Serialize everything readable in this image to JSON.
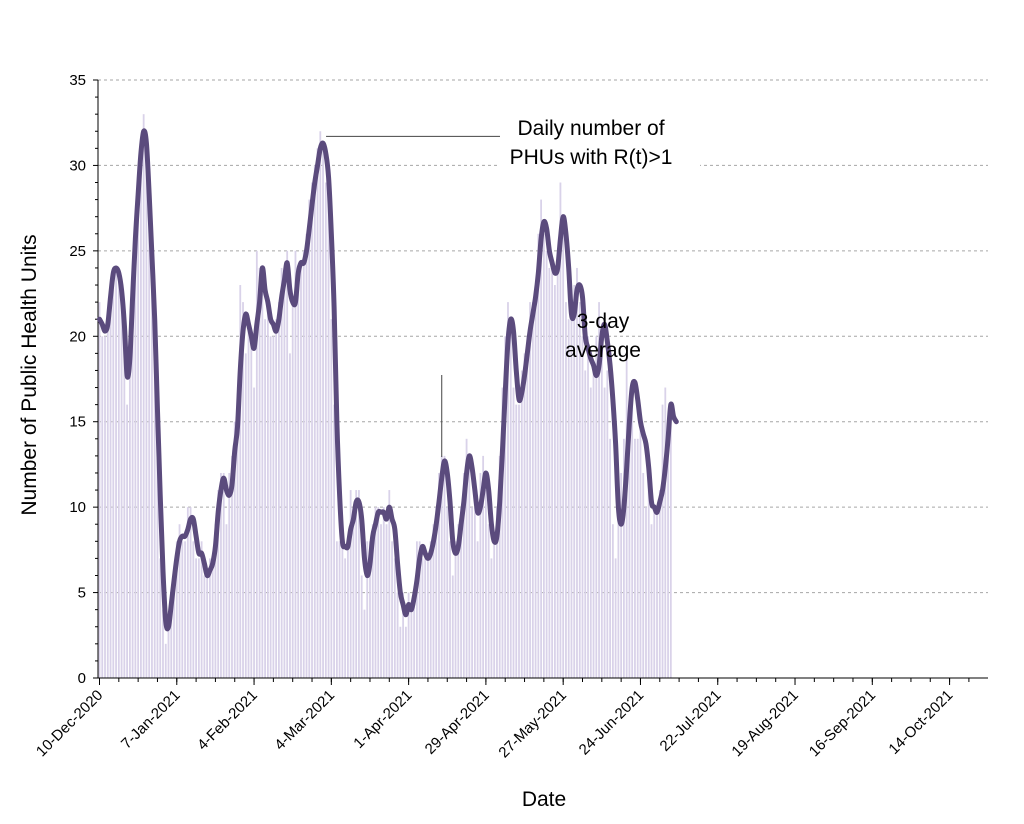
{
  "chart_data": {
    "type": "bar",
    "title": "",
    "xlabel": "Date",
    "ylabel": "Number of Public Health Units",
    "ylim": [
      0,
      35
    ],
    "y_ticks": [
      0,
      5,
      10,
      15,
      20,
      25,
      30,
      35
    ],
    "grid": "horizontal dashed",
    "x_start": "2020-12-10",
    "x_end": "2021-10-22",
    "x_ticks": [
      "10-Dec-2020",
      "7-Jan-2021",
      "4-Feb-2021",
      "4-Mar-2021",
      "1-Apr-2021",
      "29-Apr-2021",
      "27-May-2021",
      "24-Jun-2021",
      "22-Jul-2021",
      "19-Aug-2021",
      "16-Sep-2021",
      "14-Oct-2021"
    ],
    "colors": {
      "bars": "#d9d2e9",
      "line": "#5b4b7d",
      "grid": "#a6a6a6"
    },
    "series": [
      {
        "name": "Daily number of PHUs with R(t)>1",
        "type": "bar",
        "values": [
          22,
          20,
          20,
          21,
          22,
          24,
          24,
          24,
          23,
          21,
          16,
          18,
          22,
          27,
          28,
          31,
          33,
          30,
          27,
          24,
          20,
          14,
          7,
          4,
          2,
          3,
          5,
          6,
          8,
          9,
          8,
          8,
          10,
          10,
          8,
          7,
          7,
          8,
          6,
          6,
          7,
          7,
          9,
          11,
          12,
          12,
          9,
          12,
          13,
          15,
          16,
          23,
          22,
          19,
          21,
          20,
          17,
          25,
          24,
          23,
          21,
          22,
          20,
          20,
          21,
          22,
          24,
          24,
          25,
          19,
          22,
          25,
          24,
          24,
          25,
          26,
          28,
          29,
          30,
          31,
          32,
          31,
          29,
          28,
          21,
          16,
          8,
          8,
          8,
          7,
          8,
          11,
          9,
          11,
          11,
          6,
          4,
          8,
          8,
          9,
          10,
          10,
          9,
          10,
          9,
          11,
          8,
          7,
          5,
          3,
          5,
          3,
          5,
          4,
          5,
          8,
          8,
          7,
          7,
          7,
          8,
          9,
          10,
          12,
          13,
          13,
          10,
          8,
          6,
          8,
          9,
          10,
          12,
          14,
          13,
          10,
          10,
          8,
          12,
          13,
          11,
          9,
          7,
          8,
          10,
          13,
          17,
          20,
          22,
          21,
          17,
          16,
          16,
          18,
          19,
          20,
          22,
          22,
          23,
          26,
          28,
          26,
          25,
          24,
          24,
          23,
          25,
          29,
          27,
          22,
          21,
          21,
          23,
          24,
          22,
          20,
          18,
          20,
          17,
          18,
          20,
          22,
          20,
          17,
          18,
          14,
          9,
          7,
          11,
          12,
          14,
          19,
          16,
          17,
          14,
          14,
          15,
          12,
          10,
          11,
          9,
          10,
          10,
          11,
          16,
          17,
          15,
          15
        ]
      },
      {
        "name": "3-day average",
        "type": "line",
        "values": [
          21,
          20.7,
          20.3,
          20.7,
          22.3,
          23.7,
          24,
          23.7,
          22.7,
          20.7,
          17.7,
          18.7,
          22.3,
          25.7,
          28.3,
          30.7,
          32,
          31.3,
          28.3,
          24.7,
          21,
          15.7,
          10.7,
          6.3,
          3.3,
          3,
          4.3,
          5.7,
          7,
          8,
          8.3,
          8.3,
          8.7,
          9.3,
          9.3,
          8.3,
          7.3,
          7.3,
          6.7,
          6,
          6.3,
          6.7,
          7.7,
          9.7,
          11,
          11.7,
          11,
          10.7,
          11.3,
          13.3,
          14.7,
          18,
          20.3,
          21.3,
          20.7,
          20,
          19.3,
          20.7,
          22,
          24,
          22.7,
          22,
          21,
          20.7,
          20.3,
          21,
          22.3,
          23.3,
          24.3,
          22.7,
          22,
          22,
          23.7,
          24.3,
          24.3,
          25,
          26.3,
          27.7,
          29,
          30,
          31,
          31.3,
          30.7,
          29.3,
          26,
          21.7,
          15,
          10.7,
          8,
          7.7,
          7.7,
          8.7,
          9.3,
          10.3,
          10.3,
          9.3,
          7,
          6,
          6.7,
          8.3,
          9,
          9.7,
          9.7,
          9.7,
          9.3,
          10,
          9.3,
          8.7,
          6.7,
          5,
          4.3,
          3.7,
          4.3,
          4,
          4.7,
          5.7,
          7,
          7.7,
          7.3,
          7,
          7.3,
          8,
          9,
          10.3,
          11.7,
          12.7,
          12,
          10.3,
          8,
          7.3,
          7.7,
          9,
          10.3,
          12,
          13,
          12.3,
          11,
          9.7,
          10,
          11,
          12,
          11,
          9,
          8,
          8.3,
          10.3,
          13.3,
          16.7,
          19.7,
          21,
          20.3,
          18,
          16.3,
          16.7,
          17.7,
          19,
          20.3,
          21.3,
          22.3,
          23.7,
          25.7,
          26.7,
          26.3,
          25,
          24.3,
          23.7,
          24,
          25.7,
          27,
          26,
          24,
          21.3,
          21.3,
          22.7,
          23,
          22.3,
          20,
          19.3,
          18.7,
          18.3,
          17.7,
          18.3,
          20,
          20.7,
          19.7,
          18.3,
          16.3,
          13.7,
          10,
          9,
          10,
          12.3,
          15,
          17,
          17.3,
          16.3,
          15,
          14.3,
          13.7,
          12.3,
          10.3,
          10,
          9.7,
          10.3,
          11,
          12.3,
          14,
          16,
          15.3,
          15
        ]
      }
    ],
    "annotations": [
      {
        "lines": [
          "Daily number of",
          "PHUs with R(t)>1"
        ],
        "day": 81,
        "value": 31.3
      },
      {
        "lines": [
          "3-day",
          "average"
        ],
        "day": 124,
        "value": 12.7
      }
    ]
  }
}
